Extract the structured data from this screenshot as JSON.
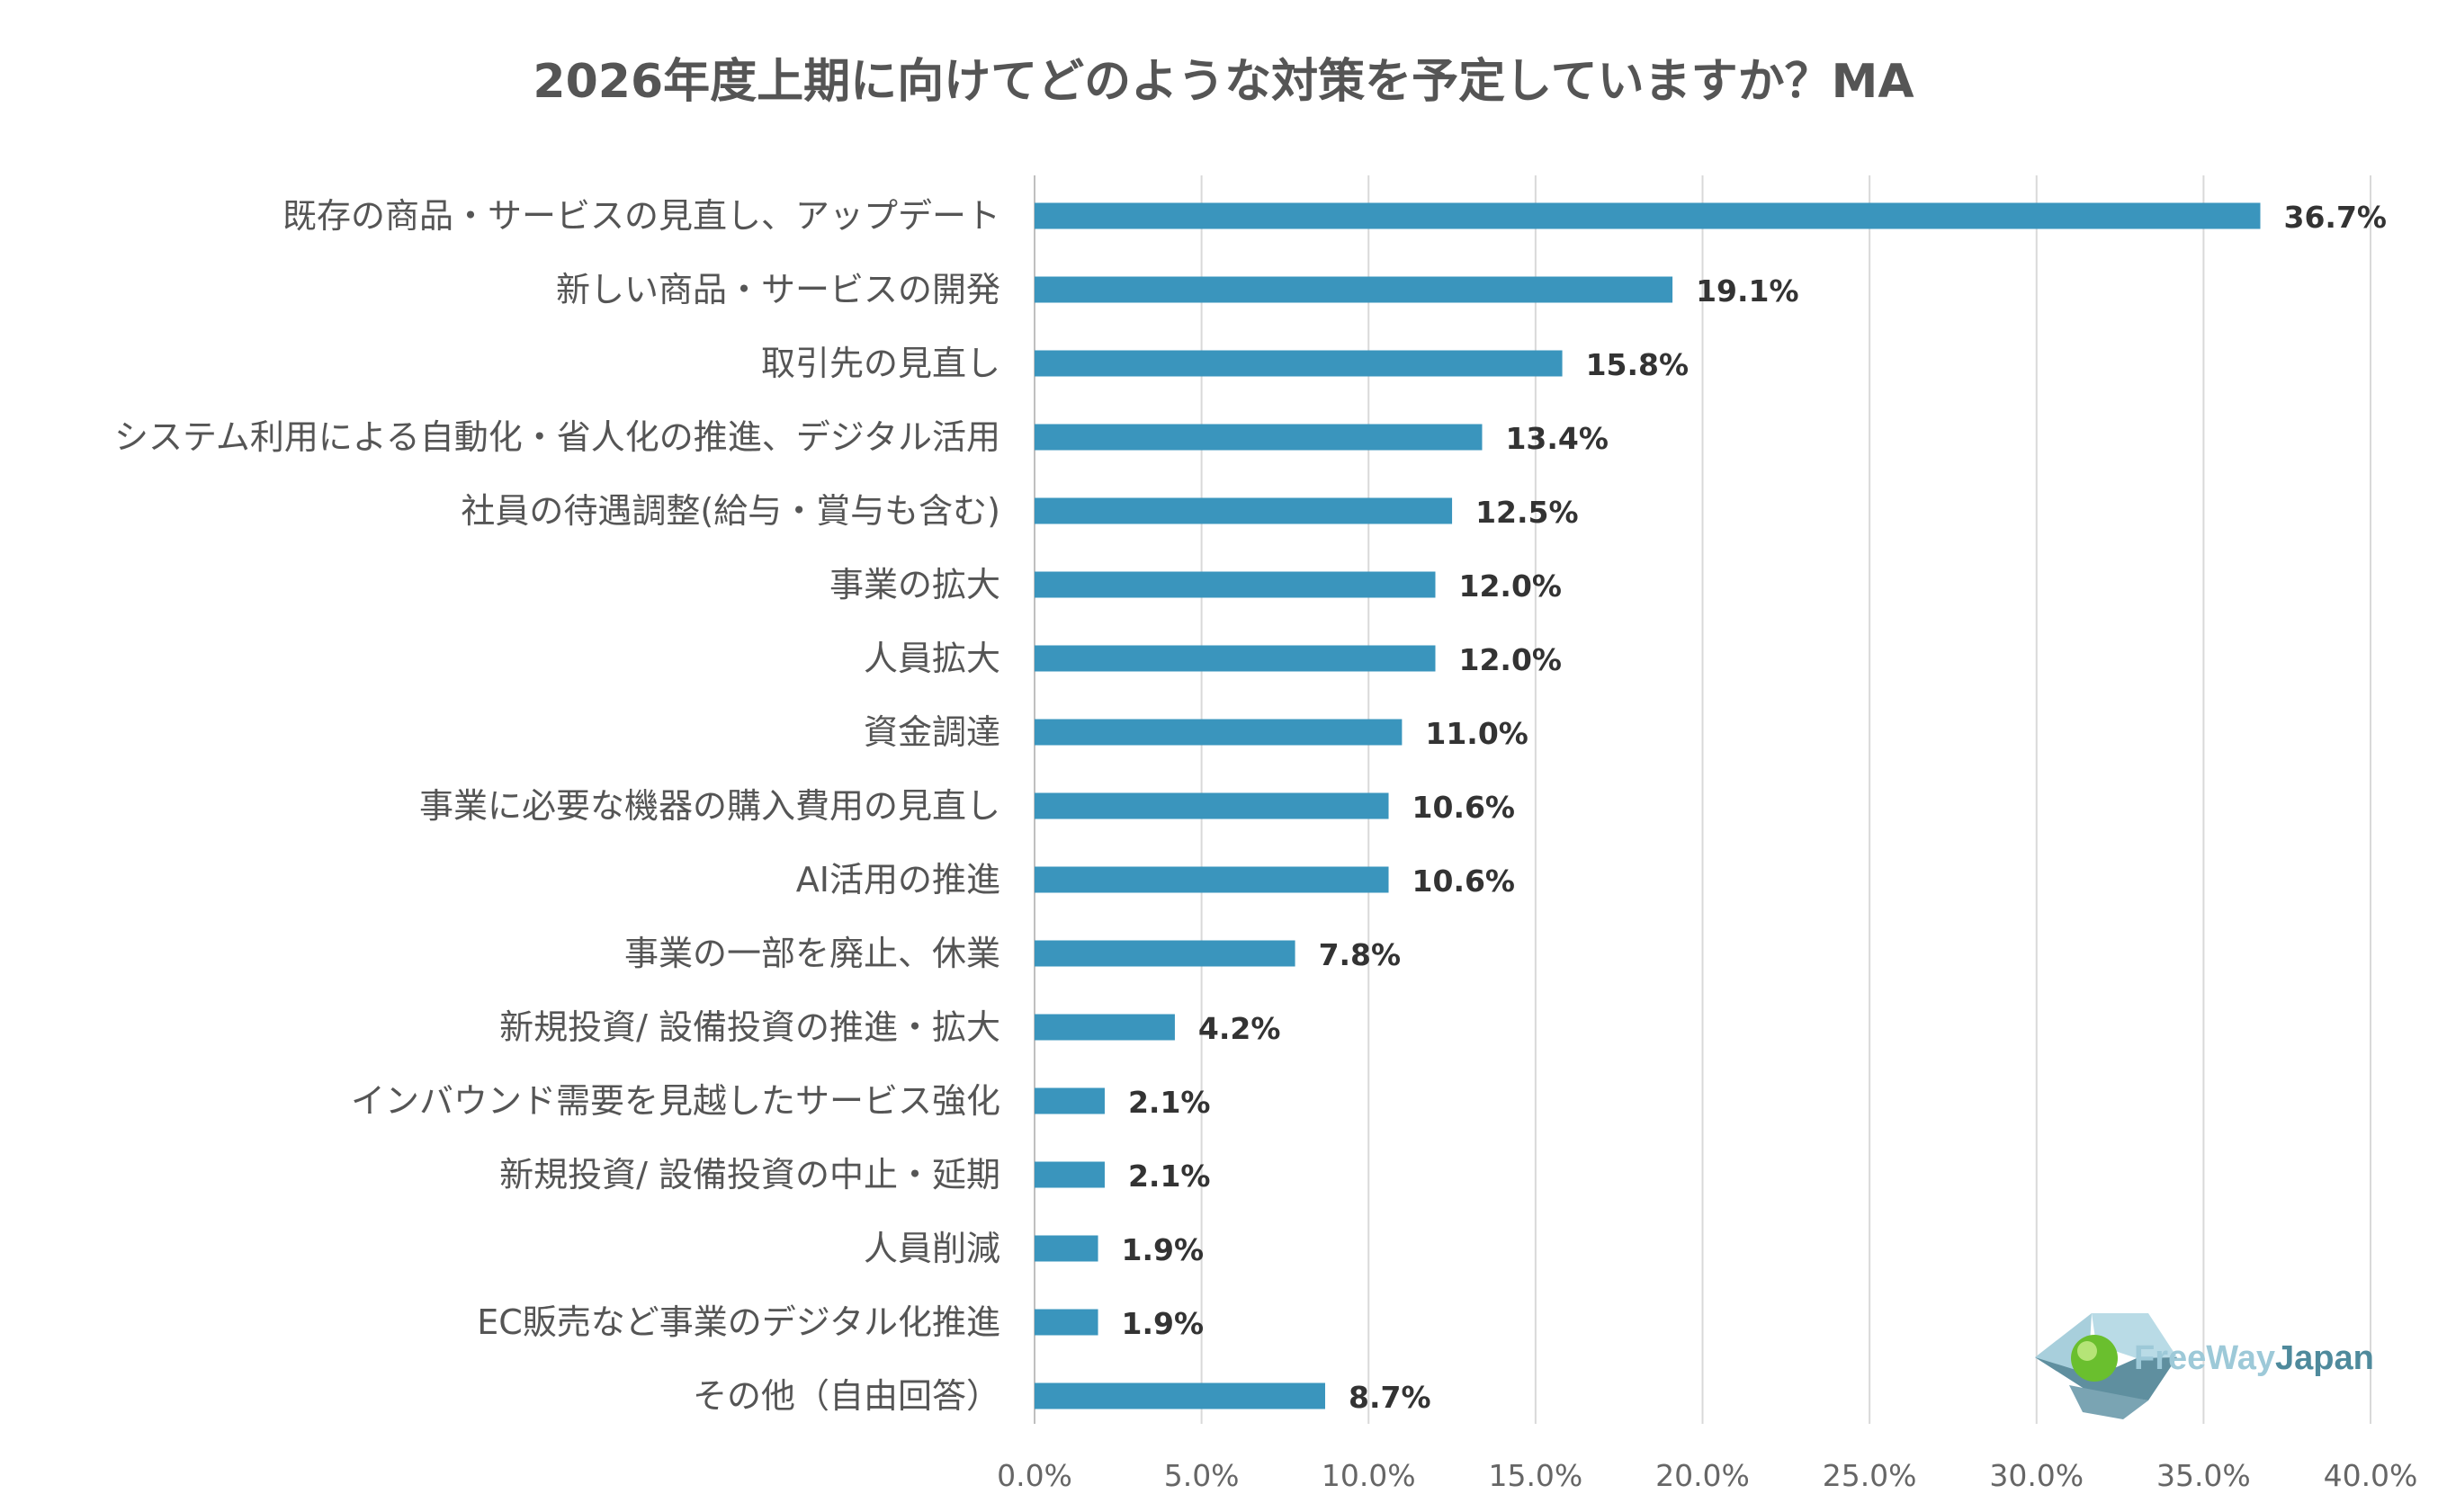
{
  "chart_data": {
    "type": "bar",
    "orientation": "horizontal",
    "title": "2026年度上期に向けてどのような対策を予定していますか？MA",
    "categories": [
      "既存の商品・サービスの見直し、アップデート",
      "新しい商品・サービスの開発",
      "取引先の見直し",
      "システム利用による自動化・省人化の推進、デジタル活用",
      "社員の待遇調整(給与・賞与も含む)",
      "事業の拡大",
      "人員拡大",
      "資金調達",
      "事業に必要な機器の購入費用の見直し",
      "AI活用の推進",
      "事業の一部を廃止、休業",
      "新規投資/ 設備投資の推進・拡大",
      "インバウンド需要を見越したサービス強化",
      "新規投資/ 設備投資の中止・延期",
      "人員削減",
      "EC販売など事業のデジタル化推進",
      "その他（自由回答）"
    ],
    "values": [
      36.7,
      19.1,
      15.8,
      13.4,
      12.5,
      12.0,
      12.0,
      11.0,
      10.6,
      10.6,
      7.8,
      4.2,
      2.1,
      2.1,
      1.9,
      1.9,
      8.7
    ],
    "value_labels": [
      "36.7%",
      "19.1%",
      "15.8%",
      "13.4%",
      "12.5%",
      "12.0%",
      "12.0%",
      "11.0%",
      "10.6%",
      "10.6%",
      "7.8%",
      "4.2%",
      "2.1%",
      "2.1%",
      "1.9%",
      "1.9%",
      "8.7%"
    ],
    "xlim": [
      0,
      40
    ],
    "ticks": [
      0,
      5,
      10,
      15,
      20,
      25,
      30,
      35,
      40
    ],
    "tick_labels": [
      "0.0%",
      "5.0%",
      "10.0%",
      "15.0%",
      "20.0%",
      "25.0%",
      "30.0%",
      "35.0%",
      "40.0%"
    ],
    "xlabel": "",
    "ylabel": "",
    "grid": true,
    "bar_color": "#3a95bd"
  },
  "logo": {
    "text_free_way": "FreeWay",
    "text_japan": "Japan",
    "color_light": "#9dc9d8",
    "color_dark": "#4f8a9c"
  }
}
